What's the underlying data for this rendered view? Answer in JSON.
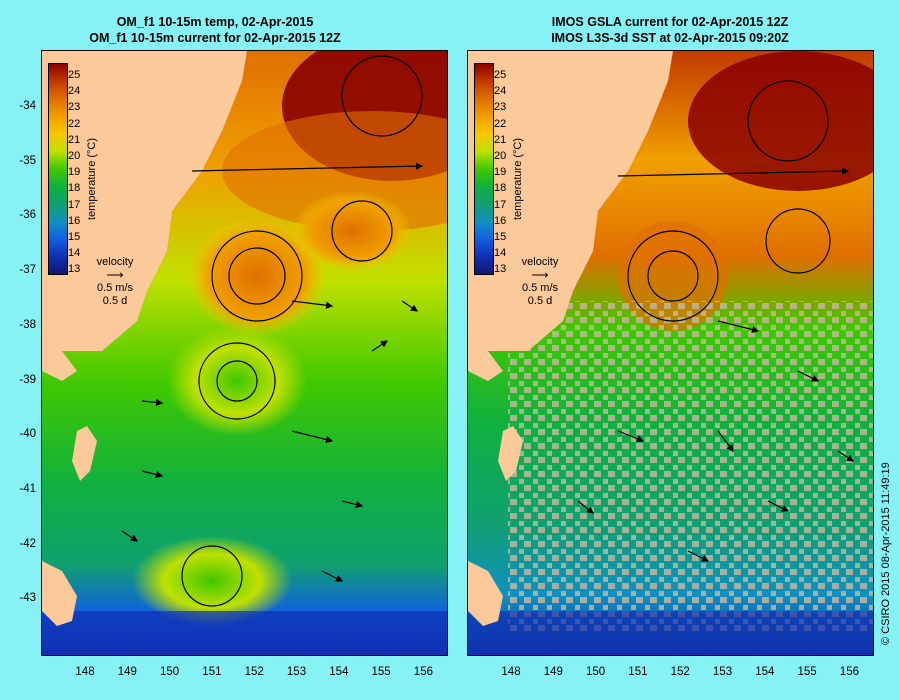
{
  "panels": [
    {
      "title_line1": "OM_f1 10-15m temp, 02-Apr-2015",
      "title_line2": "OM_f1 10-15m current for 02-Apr-2015 12Z",
      "colorbar_label": "temperature (°C)",
      "velocity_label": "velocity",
      "velocity_scale": "0.5 m/s",
      "velocity_time": "0.5 d"
    },
    {
      "title_line1": "IMOS GSLA current for 02-Apr-2015 12Z",
      "title_line2": "IMOS L3S-3d SST at 02-Apr-2015 09:20Z",
      "colorbar_label": "temperature (°C)",
      "velocity_label": "velocity",
      "velocity_scale": "0.5 m/s",
      "velocity_time": "0.5 d"
    }
  ],
  "axes": {
    "lat_ticks": [
      "-34",
      "-35",
      "-36",
      "-37",
      "-38",
      "-39",
      "-40",
      "-41",
      "-42",
      "-43"
    ],
    "lon_ticks": [
      "148",
      "149",
      "150",
      "151",
      "152",
      "153",
      "154",
      "155",
      "156"
    ]
  },
  "colorbar": {
    "ticks": [
      "25",
      "24",
      "23",
      "22",
      "21",
      "20",
      "19",
      "18",
      "17",
      "16",
      "15",
      "14",
      "13"
    ],
    "colors": [
      "#8a0000",
      "#c23a00",
      "#e07000",
      "#f0a000",
      "#f5c800",
      "#c0e000",
      "#40c800",
      "#10b040",
      "#10a070",
      "#1090c0",
      "#1060e0",
      "#1030b0",
      "#101870"
    ]
  },
  "colors": {
    "land": "#fcc99a",
    "background": "#87f2f6"
  },
  "credit": "© CSIRO 2015   08-Apr-2015 11:49:19"
}
